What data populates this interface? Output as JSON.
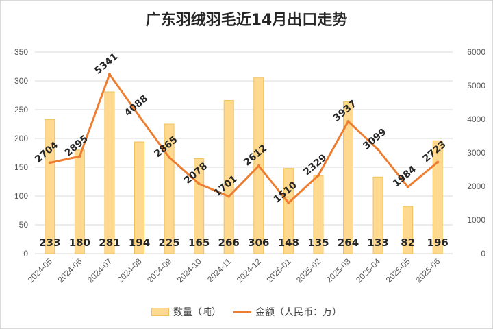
{
  "chart_data": {
    "type": "bar",
    "title": "广东羽绒羽毛近14月出口走势",
    "categories": [
      "2024-05",
      "2024-06",
      "2024-07",
      "2024-08",
      "2024-09",
      "2024-10",
      "2024-11",
      "2024-12",
      "2025-01",
      "2025-02",
      "2025-03",
      "2025-04",
      "2025-05",
      "2025-06"
    ],
    "series": [
      {
        "name": "数量（吨）",
        "type": "bar",
        "axis": "left",
        "values": [
          233,
          180,
          281,
          194,
          225,
          165,
          266,
          306,
          148,
          135,
          264,
          133,
          82,
          196
        ]
      },
      {
        "name": "金额（人民币：万）",
        "type": "line",
        "axis": "right",
        "values": [
          2704,
          2895,
          5341,
          4088,
          2865,
          2078,
          1701,
          2612,
          1510,
          2329,
          3937,
          3099,
          1984,
          2723
        ]
      }
    ],
    "y_left": {
      "ylim": [
        0,
        350
      ],
      "ticks": [
        "0",
        "50",
        "100",
        "150",
        "200",
        "250",
        "300",
        "350"
      ]
    },
    "y_right": {
      "ylim": [
        0,
        6000
      ],
      "ticks": [
        "0",
        "1000",
        "2000",
        "3000",
        "4000",
        "5000",
        "6000"
      ]
    },
    "grid": "horizontal",
    "legend_position": "bottom",
    "colors": {
      "bar_fill": "#ffd98f",
      "bar_stroke": "#f0c25a",
      "line": "#ed7d31",
      "grid": "#d9d9d9"
    }
  },
  "legend": {
    "bar_label": "数量（吨）",
    "line_label": "金额（人民币：万）"
  }
}
